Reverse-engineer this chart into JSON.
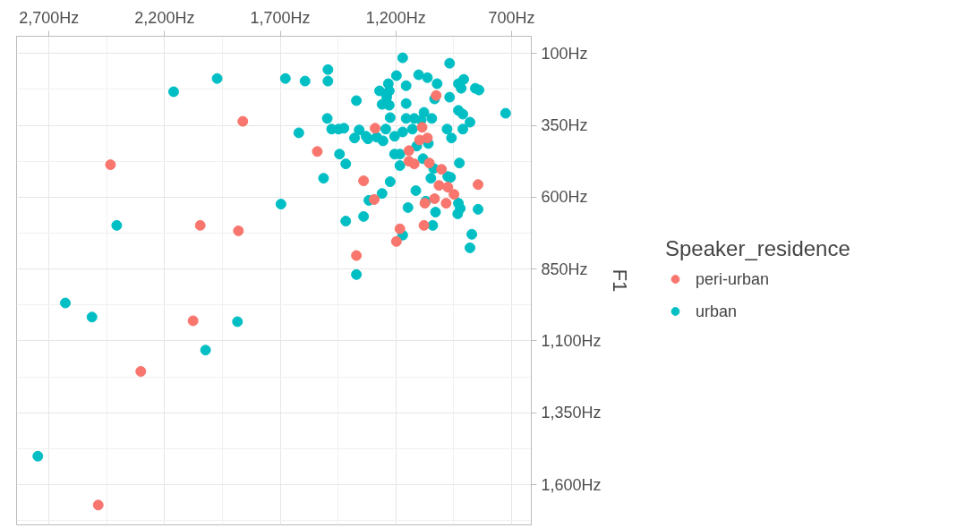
{
  "chart_data": {
    "type": "scatter",
    "ylabel": "F1",
    "legend_title": "Speaker_residence",
    "legend": "right",
    "grid": true,
    "marker": "circle",
    "xlim": [
      2840,
      615
    ],
    "ylim": [
      1740,
      40
    ],
    "xticks": [
      {
        "value": 2700,
        "label": "2,700Hz"
      },
      {
        "value": 2200,
        "label": "2,200Hz"
      },
      {
        "value": 1700,
        "label": "1,700Hz"
      },
      {
        "value": 1200,
        "label": "1,200Hz"
      },
      {
        "value": 700,
        "label": "700Hz"
      }
    ],
    "yticks": [
      {
        "value": 100,
        "label": "100Hz"
      },
      {
        "value": 350,
        "label": "350Hz"
      },
      {
        "value": 600,
        "label": "600Hz"
      },
      {
        "value": 850,
        "label": "850Hz"
      },
      {
        "value": 1100,
        "label": "1,100Hz"
      },
      {
        "value": 1350,
        "label": "1,350Hz"
      },
      {
        "value": 1600,
        "label": "1,600Hz"
      }
    ],
    "series": [
      {
        "name": "peri-urban",
        "color": "#f8766d",
        "x": [
          2487,
          2303,
          2077,
          2434,
          2046,
          1881,
          1862,
          1540,
          1371,
          1340,
          1294,
          1290,
          1198,
          1183,
          1144,
          1144,
          1121,
          1056,
          1003,
          1014,
          976,
          949,
          845,
          1033,
          1075,
          983,
          1079,
          1026,
          1087,
          1098,
          1064
        ],
        "values": [
          1671,
          1206,
          1030,
          487,
          698,
          717,
          336,
          441,
          803,
          543,
          608,
          360,
          754,
          710,
          438,
          475,
          484,
          481,
          503,
          559,
          565,
          590,
          556,
          605,
          621,
          621,
          698,
          246,
          357,
          401,
          394
        ]
      },
      {
        "name": "urban",
        "color": "#00bfc4",
        "x": [
          2748,
          2629,
          2514,
          2407,
          2161,
          2023,
          1973,
          1885,
          1697,
          1678,
          1620,
          1593,
          1513,
          1494,
          1494,
          1171,
          968,
          1198,
          1102,
          1064,
          1022,
          907,
          930,
          918,
          857,
          841,
          1233,
          1271,
          1229,
          1156,
          1371,
          1240,
          1033,
          968,
          1260,
          1229,
          1156,
          726,
          930,
          911,
          880,
          1497,
          1225,
          1156,
          1121,
          1079,
          1091,
          1045,
          1478,
          1448,
          1425,
          1359,
          1379,
          1329,
          1321,
          1283,
          1256,
          1244,
          1206,
          1171,
          1129,
          979,
          960,
          911,
          1110,
          1060,
          1444,
          1206,
          1183,
          1083,
          1417,
          1183,
          1037,
          926,
          1225,
          1049,
          976,
          964,
          1114,
          1260,
          1317,
          1071,
          1148,
          1029,
          930,
          922,
          933,
          845,
          1417,
          1340,
          1041,
          1171,
          872,
          880,
          1371
        ],
        "values": [
          1501,
          968,
          1017,
          698,
          233,
          1132,
          187,
          1033,
          624,
          187,
          376,
          196,
          534,
          156,
          196,
          115,
          134,
          177,
          174,
          184,
          205,
          190,
          205,
          221,
          221,
          227,
          205,
          230,
          230,
          212,
          264,
          252,
          258,
          252,
          277,
          280,
          274,
          308,
          298,
          311,
          339,
          326,
          323,
          326,
          326,
          305,
          332,
          326,
          363,
          363,
          360,
          366,
          394,
          388,
          397,
          391,
          404,
          363,
          388,
          373,
          363,
          363,
          394,
          363,
          422,
          413,
          450,
          450,
          450,
          466,
          484,
          490,
          500,
          481,
          546,
          534,
          528,
          531,
          577,
          587,
          611,
          614,
          636,
          652,
          621,
          639,
          658,
          642,
          683,
          667,
          698,
          732,
          729,
          776,
          869
        ]
      }
    ]
  }
}
